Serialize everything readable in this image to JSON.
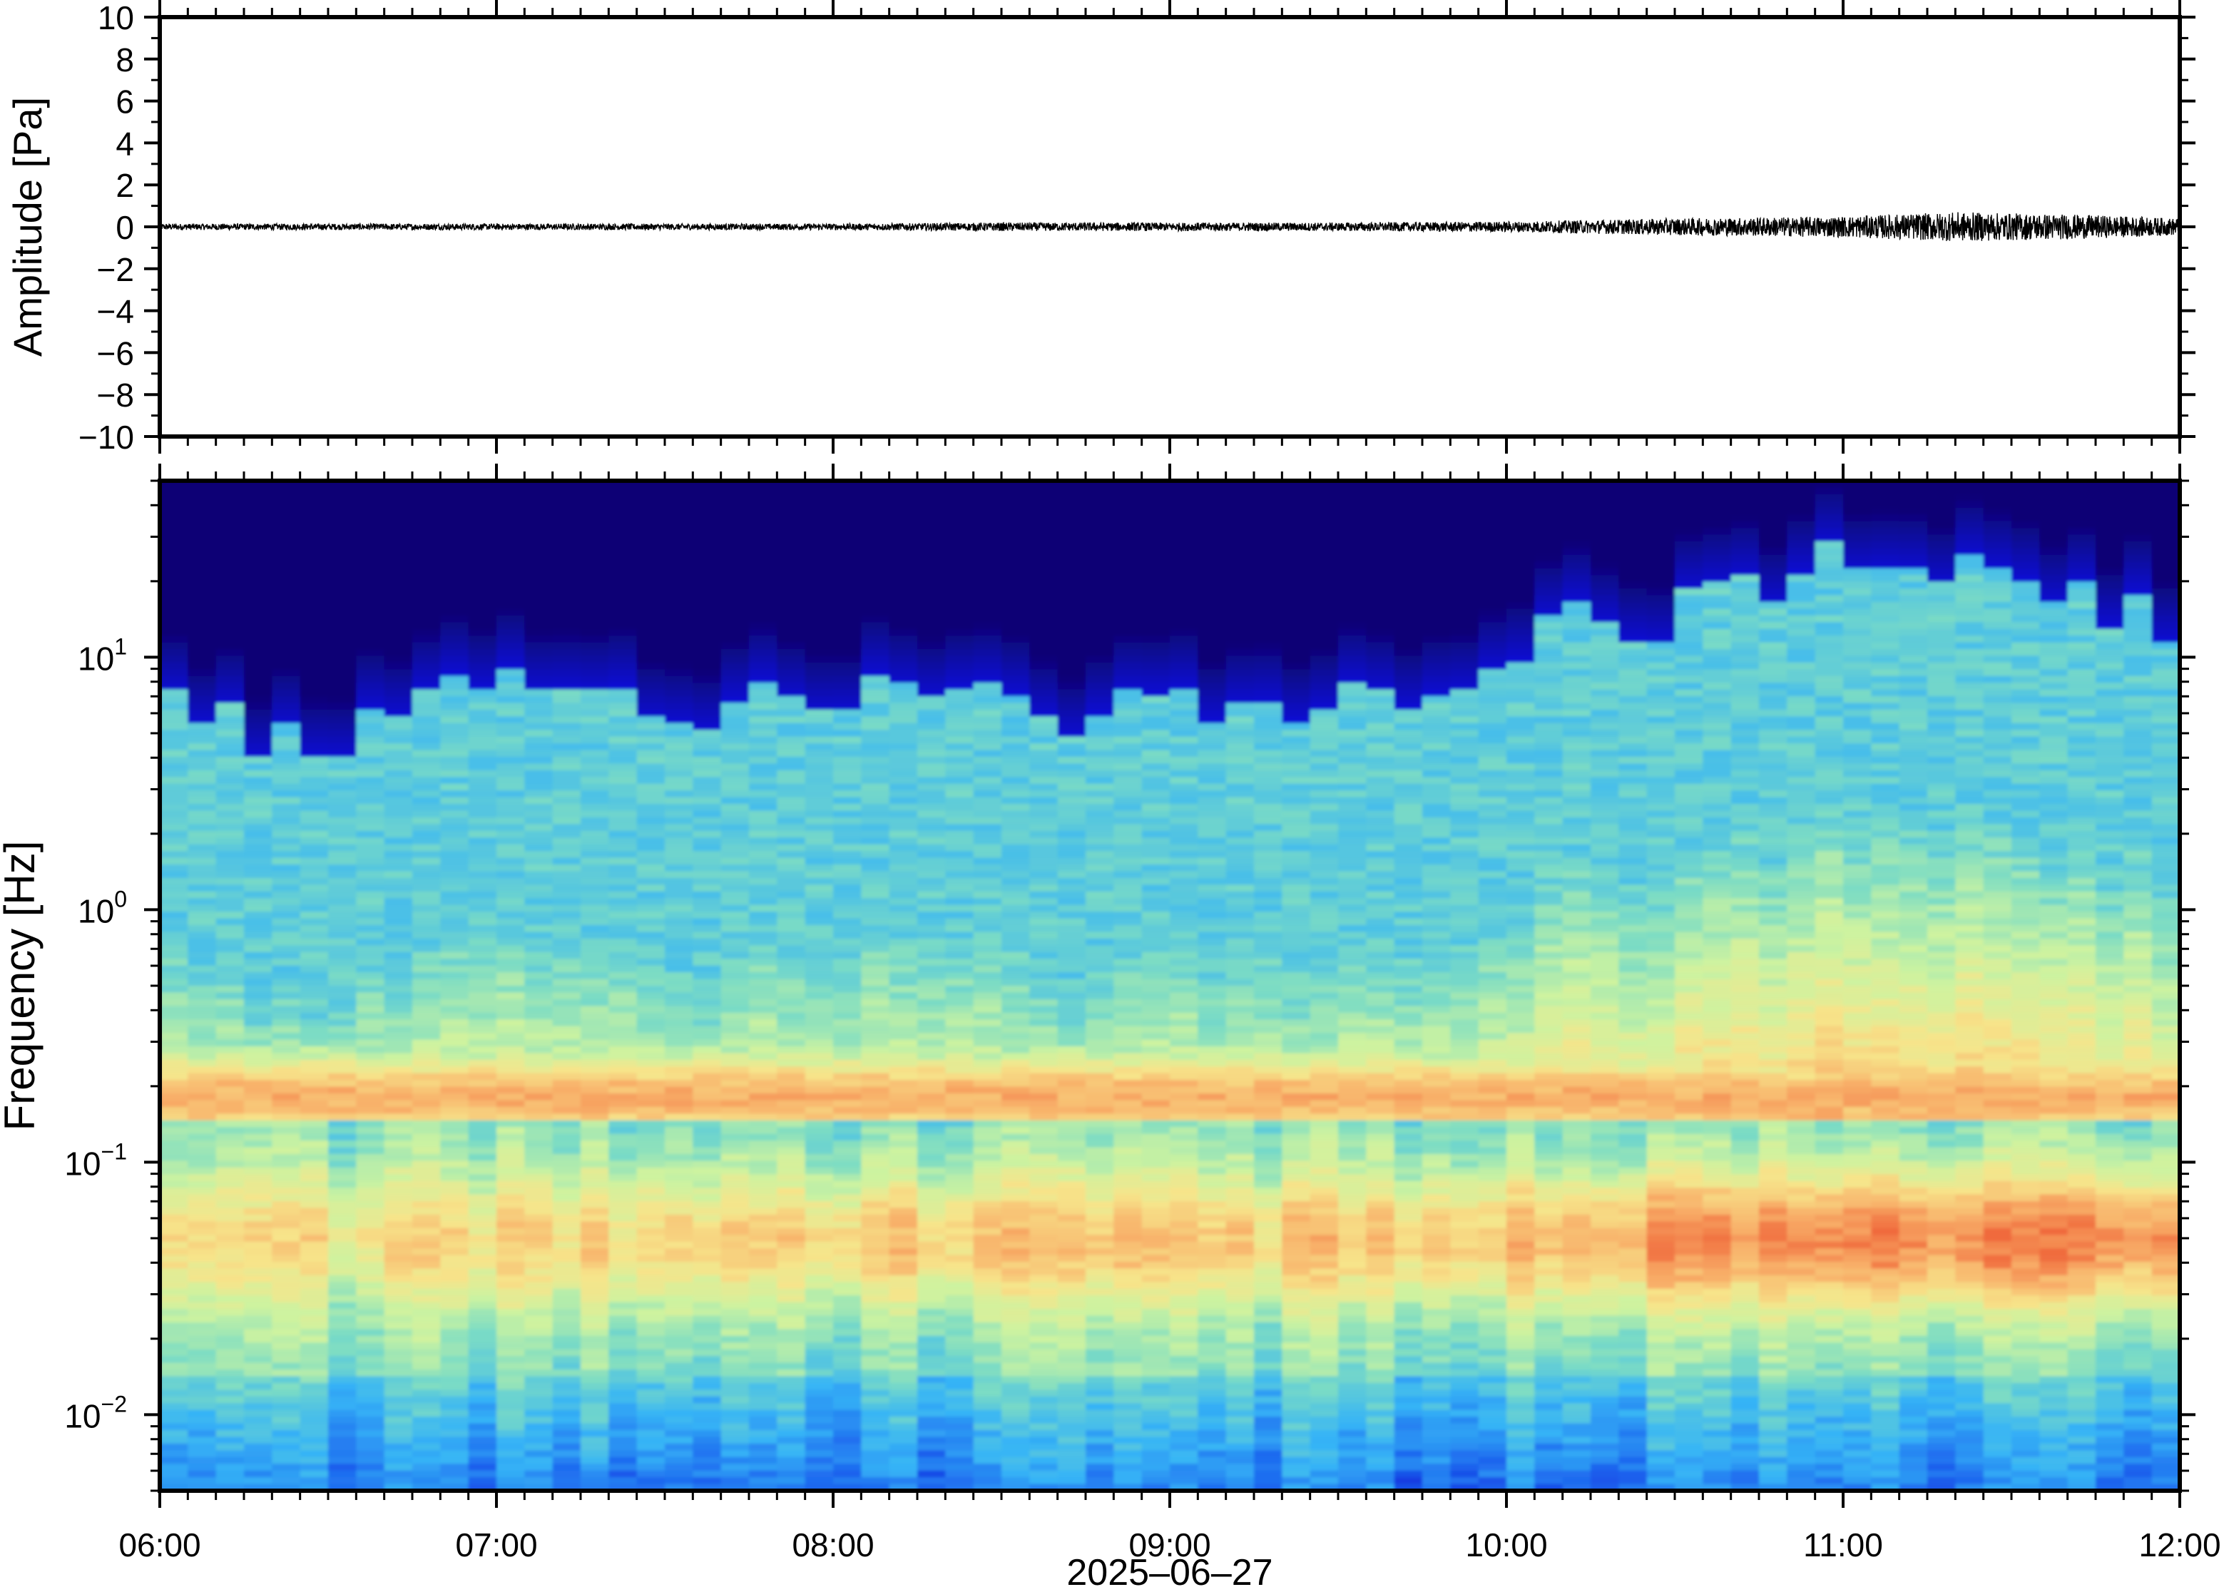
{
  "chart_data": [
    {
      "type": "line",
      "ylabel": "Amplitude [Pa]",
      "ylim": [
        -10,
        10
      ],
      "yticks": [
        "10",
        "8",
        "6",
        "4",
        "2",
        "0",
        "−2",
        "−4",
        "−6",
        "−8",
        "−10"
      ],
      "ytick_values": [
        10,
        8,
        6,
        4,
        2,
        0,
        -2,
        -4,
        -6,
        -8,
        -10
      ],
      "xlim": [
        "2025-06-27T06:00",
        "2025-06-27T12:00"
      ],
      "series": [
        {
          "x": [
            "2025-06-27T06:00",
            "2025-06-27T06:30",
            "2025-06-27T07:00",
            "2025-06-27T07:30",
            "2025-06-27T08:00",
            "2025-06-27T08:30",
            "2025-06-27T09:00",
            "2025-06-27T09:30",
            "2025-06-27T10:00",
            "2025-06-27T10:30",
            "2025-06-27T11:00",
            "2025-06-27T11:20",
            "2025-06-27T11:40",
            "2025-06-27T12:00"
          ],
          "envelope": [
            0.15,
            0.15,
            0.15,
            0.15,
            0.15,
            0.2,
            0.2,
            0.2,
            0.25,
            0.4,
            0.5,
            0.7,
            0.6,
            0.4
          ]
        }
      ],
      "color": "#000000"
    },
    {
      "type": "heatmap",
      "ylabel": "Frequency [Hz]",
      "xlabel": "2025–06–27",
      "xticks": [
        "06:00",
        "07:00",
        "08:00",
        "09:00",
        "10:00",
        "11:00",
        "12:00"
      ],
      "xlim": [
        "2025-06-27T06:00",
        "2025-06-27T12:00"
      ],
      "yscale": "log",
      "ylim": [
        0.005,
        50
      ],
      "yticks": [
        {
          "base": "10",
          "exp": "1",
          "value": 10
        },
        {
          "base": "10",
          "exp": "0",
          "value": 1
        },
        {
          "base": "10",
          "exp": "−1",
          "value": 0.1
        },
        {
          "base": "10",
          "exp": "−2",
          "value": 0.01
        }
      ],
      "colormap": "jet",
      "colormap_colors": [
        "#0c0474",
        "#0b12d6",
        "#1f6df0",
        "#36b4f6",
        "#7cdcc4",
        "#cdf3a0",
        "#f7e48a",
        "#f8ae68",
        "#f06a3c"
      ],
      "energy_top_hz": [
        6,
        5,
        5,
        8,
        7,
        6,
        7,
        7,
        8,
        6,
        7,
        7,
        7,
        7,
        14,
        14,
        20,
        25,
        22,
        16,
        14
      ],
      "hot_band_hz": [
        0.03,
        0.08
      ],
      "hot_band_intensity": [
        0.55,
        0.5,
        0.5,
        0.55,
        0.55,
        0.6,
        0.6,
        0.65,
        0.65,
        0.6,
        0.65,
        0.6,
        0.65,
        0.7,
        0.75,
        0.85,
        0.85,
        0.9,
        0.9,
        0.9,
        0.9
      ],
      "grid": false
    }
  ]
}
